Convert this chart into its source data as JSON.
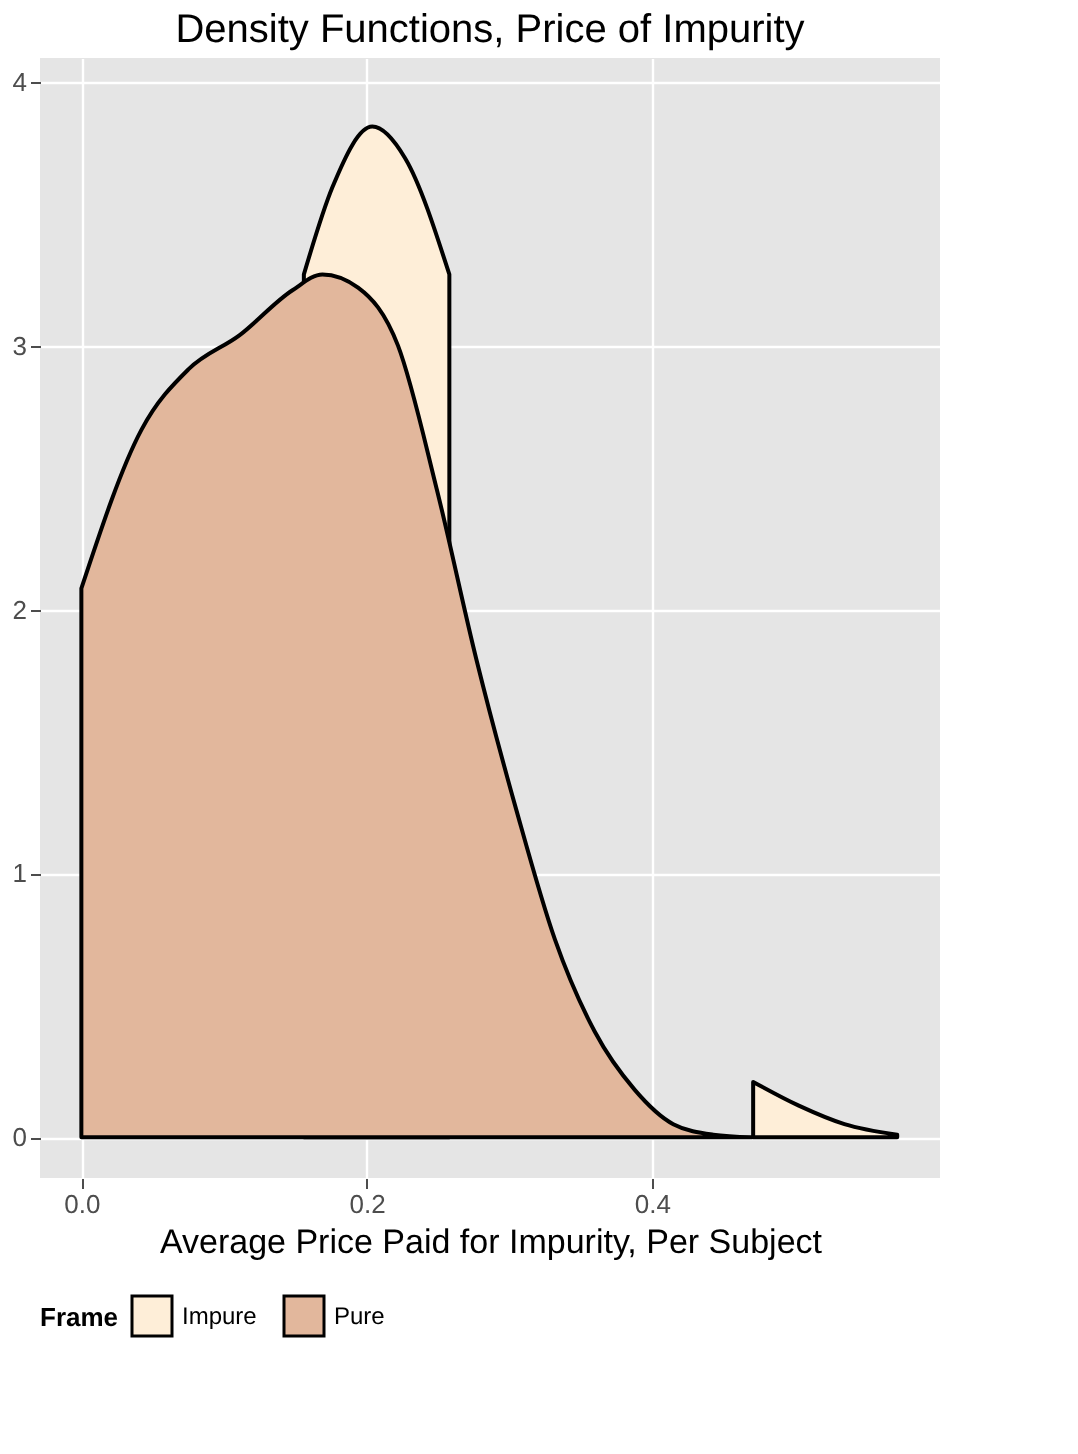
{
  "chart_data": {
    "type": "area",
    "title": "Density Functions, Price of Impurity",
    "xlabel": "Average Price Paid for Impurity, Per Subject",
    "legend_title": "Frame",
    "xlim": [
      -0.029,
      0.602
    ],
    "ylim": [
      -0.154,
      4.09
    ],
    "xticks": [
      {
        "value": 0,
        "label": "0.0"
      },
      0.2,
      0.4
    ],
    "yticks": [
      0,
      1,
      2,
      3,
      4
    ],
    "grid": true,
    "legend": "bottom",
    "series": [
      {
        "name": "Impure",
        "color": "#feeed8",
        "x": [
          0.156,
          0.176,
          0.204,
          0.227,
          0.258,
          0.471,
          0.503,
          0.535,
          0.572
        ],
        "values": [
          3.27,
          3.6,
          3.83,
          3.71,
          3.27,
          0.21,
          0.12,
          0.05,
          0.01
        ]
      },
      {
        "name": "Pure",
        "color": "#e2b79c",
        "x": [
          0,
          0.042,
          0.075,
          0.111,
          0.148,
          0.169,
          0.194,
          0.222,
          0.249,
          0.277,
          0.305,
          0.332,
          0.36,
          0.388,
          0.415,
          0.443,
          0.47
        ],
        "values": [
          2.08,
          2.68,
          2.91,
          3.04,
          3.21,
          3.27,
          3.22,
          3.0,
          2.46,
          1.81,
          1.24,
          0.75,
          0.4,
          0.18,
          0.05,
          0.01,
          0
        ]
      }
    ]
  }
}
